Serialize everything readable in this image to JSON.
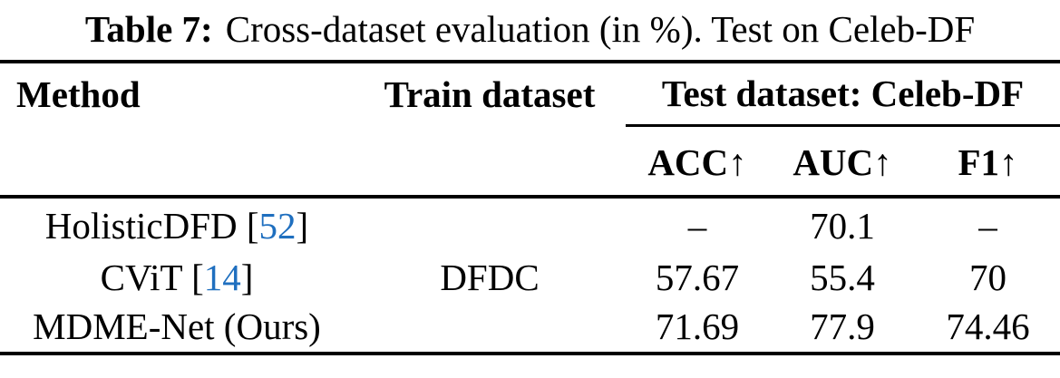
{
  "caption": {
    "label": "Table 7:",
    "text": "Cross-dataset evaluation (in %). Test on Celeb-DF"
  },
  "colors": {
    "text": "#000000",
    "rule": "#000000",
    "citation_link": "#1f6fbf",
    "background": "#ffffff"
  },
  "table": {
    "columns": {
      "method": "Method",
      "train": "Train dataset",
      "test_group": "Test dataset: Celeb-DF",
      "metrics": [
        "ACC↑",
        "AUC↑",
        "F1↑"
      ]
    },
    "rows": [
      {
        "method": "HolisticDFD",
        "cite_open": " [",
        "cite": "52",
        "cite_close": "]",
        "train": "",
        "acc": "–",
        "auc": "70.1",
        "f1": "–"
      },
      {
        "method": "CViT",
        "cite_open": " [",
        "cite": "14",
        "cite_close": "]",
        "train": "DFDC",
        "acc": "57.67",
        "auc": "55.4",
        "f1": "70"
      },
      {
        "method": "MDME-Net (Ours)",
        "cite_open": "",
        "cite": "",
        "cite_close": "",
        "train": "",
        "acc": "71.69",
        "auc": "77.9",
        "f1": "74.46"
      }
    ]
  }
}
